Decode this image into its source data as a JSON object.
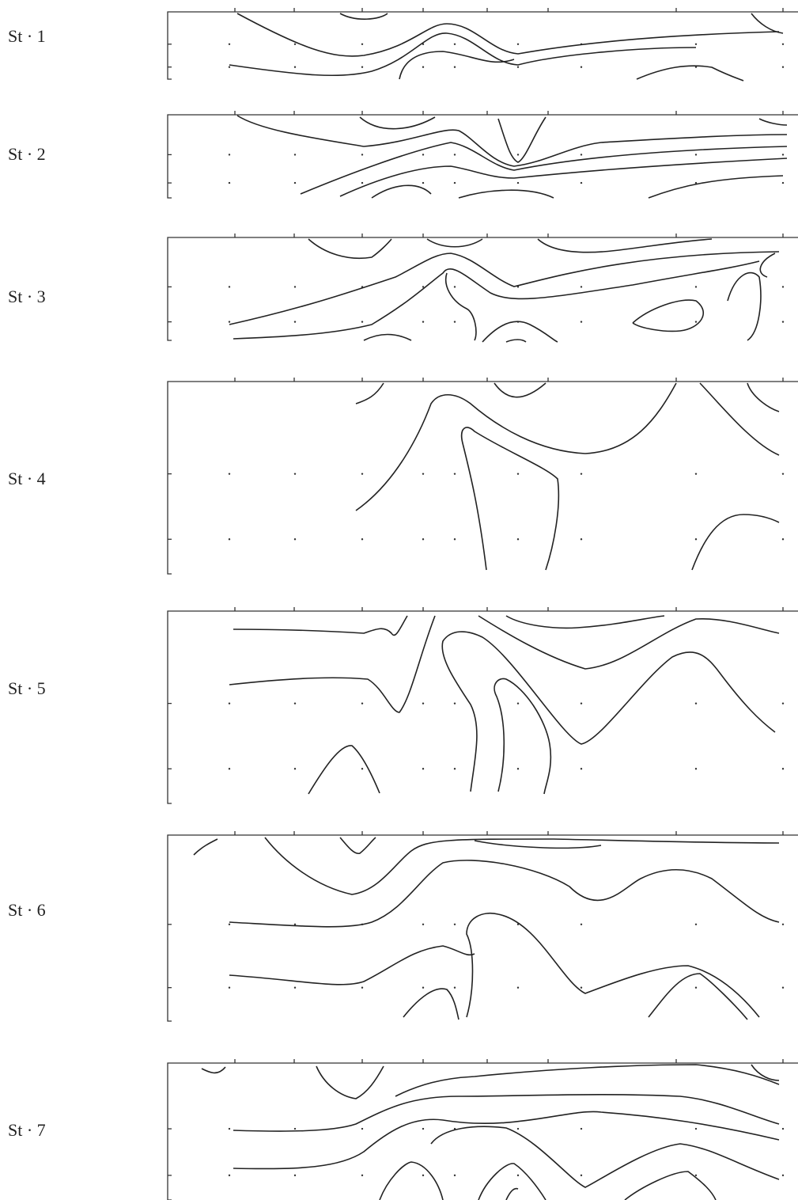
{
  "panels": [
    {
      "label": "St · 1"
    },
    {
      "label": "St · 2"
    },
    {
      "label": "St · 3"
    },
    {
      "label": "St · 4"
    },
    {
      "label": "St · 5"
    },
    {
      "label": "St · 6"
    },
    {
      "label": "St · 7"
    }
  ]
}
